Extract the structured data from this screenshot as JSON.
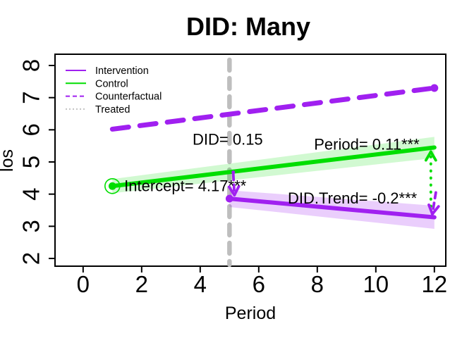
{
  "chart_data": {
    "type": "line",
    "title": "DID: Many",
    "xlabel": "Period",
    "ylabel": "los",
    "x_ticks": [
      0,
      2,
      4,
      6,
      8,
      10,
      12
    ],
    "y_ticks": [
      2,
      3,
      4,
      5,
      6,
      7,
      8
    ],
    "xlim": [
      -0.96,
      12.39
    ],
    "ylim": [
      1.76,
      8.35
    ],
    "grid": false,
    "legend_position": "top-left",
    "colors": {
      "purple": "#A020F0",
      "green": "#00DE00",
      "gray": "#BEBEBE",
      "green_band": "rgba(0,222,0,0.18)",
      "purple_band": "rgba(160,32,240,0.22)"
    },
    "legend": [
      {
        "label": "Intervention",
        "color": "#A020F0",
        "style": "solid"
      },
      {
        "label": "Control",
        "color": "#00DE00",
        "style": "solid"
      },
      {
        "label": "Counterfactual",
        "color": "#A020F0",
        "style": "dashed"
      },
      {
        "label": "Treated",
        "color": "#C3C3C3",
        "style": "dotted"
      }
    ],
    "reference_line": {
      "x": 5,
      "color": "#BEBEBE",
      "style": "dashed"
    },
    "series": [
      {
        "name": "Counterfactual",
        "color": "#A020F0",
        "style": "dashed",
        "width": 7,
        "points": [
          [
            1,
            6.02
          ],
          [
            12,
            7.3
          ]
        ],
        "end_dot": true
      },
      {
        "name": "Control",
        "color": "#00DE00",
        "style": "solid",
        "width": 6,
        "points": [
          [
            1,
            4.25
          ],
          [
            12,
            5.45
          ]
        ],
        "band_half": [
          0.22,
          0.33
        ],
        "band_color": "rgba(0,222,0,0.18)",
        "start_dot": true,
        "start_ring": true
      },
      {
        "name": "Intervention",
        "color": "#A020F0",
        "style": "solid",
        "width": 6,
        "points": [
          [
            5,
            3.86
          ],
          [
            12,
            3.28
          ]
        ],
        "band_half": [
          0.26,
          0.36
        ],
        "band_color": "rgba(160,32,240,0.22)",
        "start_dot": true
      }
    ],
    "annotations": [
      {
        "id": "did",
        "text": "DID= 0.15",
        "x": 4.94,
        "y": 5.7
      },
      {
        "id": "period",
        "text": "Period= 0.11***",
        "x": 9.69,
        "y": 5.55
      },
      {
        "id": "intercept",
        "text": "Intercept= 4.17***",
        "x": 3.49,
        "y": 4.26
      },
      {
        "id": "did-trend",
        "text": "DID.Trend= -0.2***",
        "x": 9.2,
        "y": 3.88
      }
    ],
    "effect_arrows": [
      {
        "name": "did-drop-arrow",
        "color": "#A020F0",
        "style": "dashed",
        "from": [
          5.13,
          4.62
        ],
        "to": [
          5.17,
          3.97
        ]
      },
      {
        "name": "control-end-arrow",
        "color": "#00DE00",
        "style": "dotted",
        "from": [
          11.88,
          3.62
        ],
        "to": [
          11.88,
          5.32
        ]
      },
      {
        "name": "intervention-end-arrow",
        "color": "#A020F0",
        "style": "dashed",
        "from": [
          12.05,
          4.05
        ],
        "to": [
          11.93,
          3.38
        ]
      }
    ],
    "markers": [
      {
        "name": "did-arrow-origin-dot",
        "x": 5.13,
        "y": 4.68,
        "color": "#A020F0",
        "r": 2.5
      }
    ]
  }
}
